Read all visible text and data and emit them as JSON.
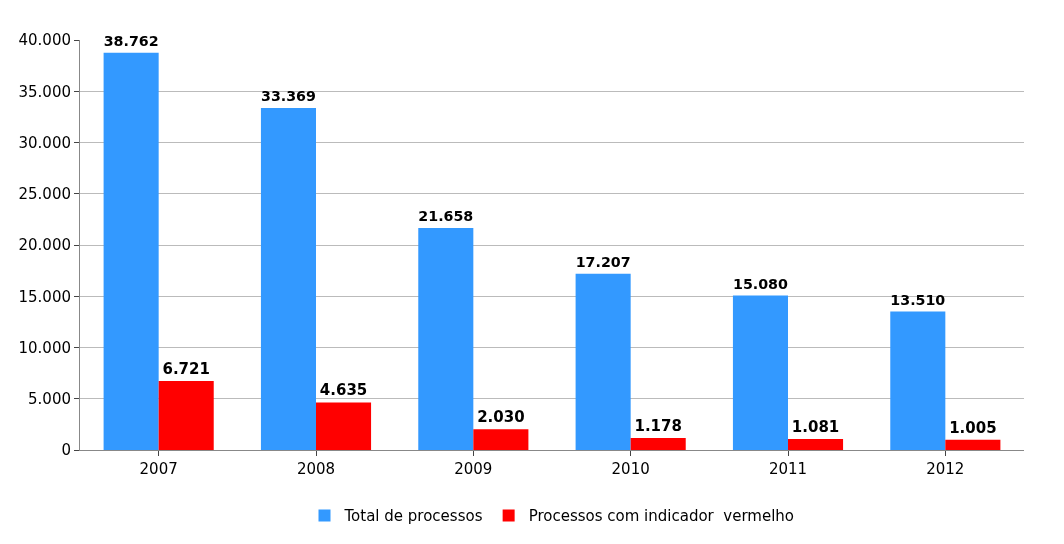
{
  "chart_data": {
    "type": "bar",
    "categories": [
      "2007",
      "2008",
      "2009",
      "2010",
      "2011",
      "2012"
    ],
    "series": [
      {
        "name": "Total de processos",
        "color": "#3399ff",
        "values": [
          38762,
          33369,
          21658,
          17207,
          15080,
          13510
        ],
        "value_labels": [
          "38.762",
          "33.369",
          "21.658",
          "17.207",
          "15.080",
          "13.510"
        ]
      },
      {
        "name": "Processos com indicador  vermelho",
        "color": "#ff0000",
        "values": [
          6721,
          4635,
          2030,
          1178,
          1081,
          1005
        ],
        "value_labels": [
          "6.721",
          "4.635",
          "2.030",
          "1.178",
          "1.081",
          "1.005"
        ]
      }
    ],
    "ylim": [
      0,
      40000
    ],
    "yticks": [
      {
        "value": 0,
        "label": "0"
      },
      {
        "value": 5000,
        "label": "5.000"
      },
      {
        "value": 10000,
        "label": "10.000"
      },
      {
        "value": 15000,
        "label": "15.000"
      },
      {
        "value": 20000,
        "label": "20.000"
      },
      {
        "value": 25000,
        "label": "25.000"
      },
      {
        "value": 30000,
        "label": "30.000"
      },
      {
        "value": 35000,
        "label": "35.000"
      },
      {
        "value": 40000,
        "label": "40.000"
      }
    ],
    "grid": "y",
    "legend": "bottom"
  }
}
